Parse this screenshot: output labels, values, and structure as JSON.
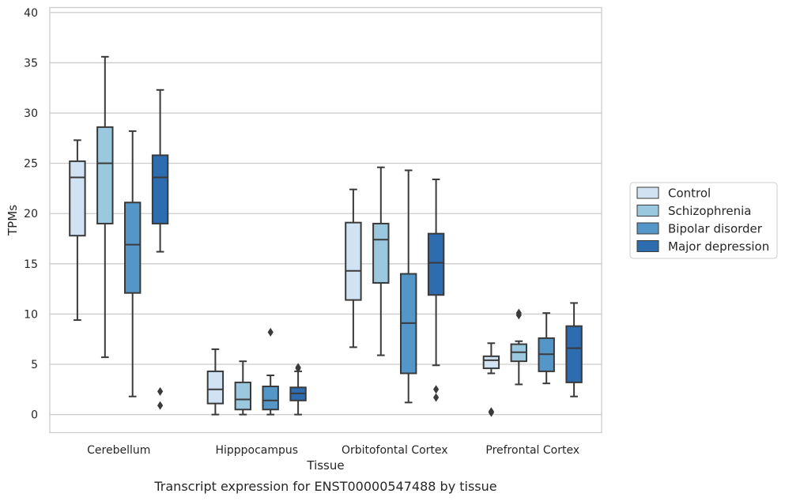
{
  "chart_data": {
    "type": "boxplot",
    "title": "",
    "caption": "Transcript expression for ENST00000547488 by tissue",
    "xlabel": "Tissue",
    "ylabel": "TPMs",
    "ylim": [
      -1.8,
      40.5
    ],
    "yticks": [
      0,
      5,
      10,
      15,
      20,
      25,
      30,
      35,
      40
    ],
    "grid": "horizontal",
    "legend_position": "right",
    "categories": [
      "Cerebellum",
      "Hipppocampus",
      "Orbitofontal Cortex",
      "Prefrontal Cortex"
    ],
    "series": [
      {
        "name": "Control",
        "color": "#d1e2f2",
        "boxes": [
          {
            "whislo": 9.4,
            "q1": 17.8,
            "med": 23.6,
            "q3": 25.2,
            "whishi": 27.3,
            "fliers": []
          },
          {
            "whislo": 0.0,
            "q1": 1.1,
            "med": 2.5,
            "q3": 4.3,
            "whishi": 6.5,
            "fliers": []
          },
          {
            "whislo": 6.7,
            "q1": 11.4,
            "med": 14.3,
            "q3": 19.1,
            "whishi": 22.4,
            "fliers": []
          },
          {
            "whislo": 4.1,
            "q1": 4.6,
            "med": 5.4,
            "q3": 5.8,
            "whishi": 7.1,
            "fliers": [
              0.3,
              0.2
            ]
          }
        ]
      },
      {
        "name": "Schizophrenia",
        "color": "#9ac8df",
        "boxes": [
          {
            "whislo": 5.7,
            "q1": 19.0,
            "med": 25.0,
            "q3": 28.6,
            "whishi": 35.6,
            "fliers": []
          },
          {
            "whislo": 0.0,
            "q1": 0.5,
            "med": 1.5,
            "q3": 3.2,
            "whishi": 5.3,
            "fliers": []
          },
          {
            "whislo": 5.9,
            "q1": 13.1,
            "med": 17.4,
            "q3": 19.0,
            "whishi": 24.6,
            "fliers": []
          },
          {
            "whislo": 3.0,
            "q1": 5.3,
            "med": 6.2,
            "q3": 7.0,
            "whishi": 7.3,
            "fliers": [
              9.9,
              10.1
            ]
          }
        ]
      },
      {
        "name": "Bipolar disorder",
        "color": "#5496c7",
        "boxes": [
          {
            "whislo": 1.8,
            "q1": 12.1,
            "med": 16.9,
            "q3": 21.1,
            "whishi": 28.2,
            "fliers": []
          },
          {
            "whislo": 0.0,
            "q1": 0.5,
            "med": 1.4,
            "q3": 2.8,
            "whishi": 3.9,
            "fliers": [
              8.2
            ]
          },
          {
            "whislo": 1.2,
            "q1": 4.1,
            "med": 9.1,
            "q3": 14.0,
            "whishi": 24.3,
            "fliers": []
          },
          {
            "whislo": 3.1,
            "q1": 4.3,
            "med": 6.0,
            "q3": 7.6,
            "whishi": 10.1,
            "fliers": []
          }
        ]
      },
      {
        "name": "Major depression",
        "color": "#2d6cae",
        "boxes": [
          {
            "whislo": 16.2,
            "q1": 19.0,
            "med": 23.6,
            "q3": 25.8,
            "whishi": 32.3,
            "fliers": [
              2.3,
              0.9
            ]
          },
          {
            "whislo": 0.0,
            "q1": 1.4,
            "med": 2.1,
            "q3": 2.7,
            "whishi": 4.3,
            "fliers": [
              4.7,
              4.6
            ]
          },
          {
            "whislo": 4.9,
            "q1": 11.9,
            "med": 15.1,
            "q3": 18.0,
            "whishi": 23.4,
            "fliers": [
              2.5,
              1.7
            ]
          },
          {
            "whislo": 1.8,
            "q1": 3.2,
            "med": 6.6,
            "q3": 8.8,
            "whishi": 11.1,
            "fliers": []
          }
        ]
      }
    ]
  }
}
